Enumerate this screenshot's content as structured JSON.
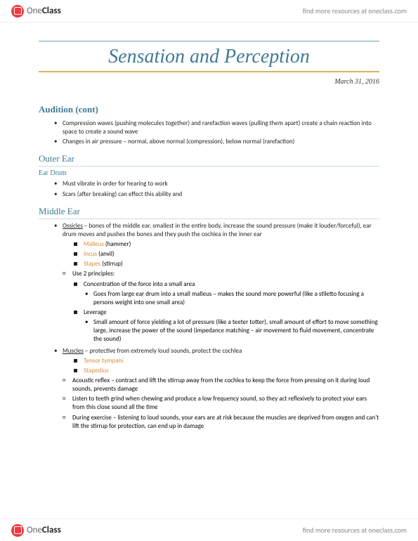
{
  "brand": {
    "part1": "One",
    "part2": "Class"
  },
  "resource_link": "find more resources at oneclass.com",
  "title": "Sensation and Perception",
  "date": "March 31, 2016",
  "colors": {
    "heading": "#3f7a94",
    "heading_rule": "#6aa2b8",
    "gold_rule": "#d8b45a",
    "sub_rule": "#c8dbe4",
    "term": "#d98a3a",
    "body_text": "#222222",
    "background": "#ffffff",
    "brand_red": "#ee3a43"
  },
  "typography": {
    "title_fontsize": 28,
    "heading_fontsize": 13,
    "body_fontsize": 9,
    "title_font": "Georgia italic",
    "body_font": "Calibri"
  },
  "sections": {
    "audition": {
      "heading": "Audition (cont)",
      "b1": "Compression waves (pushing molecules together) and rarefaction waves (pulling them apart) create a chain reaction into space to create a sound wave",
      "b2": "Changes in air pressure – normal, above normal (compression), below normal (rarefaction)"
    },
    "outer": {
      "heading": "Outer Ear",
      "sub": "Ear Drum",
      "b1": "Must vibrate in order for hearing to work",
      "b2": "Scars (after breaking) can effect this ability and"
    },
    "middle": {
      "heading": "Middle Ear",
      "ossicles_term": "Ossicles",
      "ossicles_text": " – bones of the middle ear, smallest in the entire body, increase the sound pressure (make it louder/forceful), ear drum moves and pushes the bones and they push the cochlea in the inner ear",
      "malleus_term": "Malleus",
      "malleus_rest": " (hammer)",
      "incus_term": "Incus",
      "incus_rest": " (anvil)",
      "stapes_term": "Stapes",
      "stapes_rest": " (stirrup)",
      "principles_intro": "Use 2 principles:",
      "p1_head": "Concentration of the force into a small area",
      "p1_detail": "Goes from large ear drum into a small malleus – makes the sound more powerful (like a stiletto focusing a persons weight into one small area)",
      "p2_head": "Leverage",
      "p2_detail": "Small amount of force yielding a lot of pressure (like a teeter totter), small amount of effort to move something large, increase the power of the sound (impedance matching – air movement to fluid movement, concentrate the sound)",
      "muscles_term": "Muscles",
      "muscles_text": " – protective from extremely loud sounds, protect the cochlea",
      "tensor": "Tensor tympani",
      "stapedius": "Stapedius",
      "m_b1": "Acoustic reflex – contract and lift the stirrup away from the cochlea to keep the force from pressing on it during loud sounds, prevents damage",
      "m_b2": "Listen to teeth grind when chewing and produce a low frequency sound, so they act reflexively to protect your ears from this close sound all the time",
      "m_b3": "During exercise – listening to loud sounds, your ears are at risk because the muscles are deprived from oxygen and can't lift the stirrup for protection, can end up in damage"
    }
  }
}
